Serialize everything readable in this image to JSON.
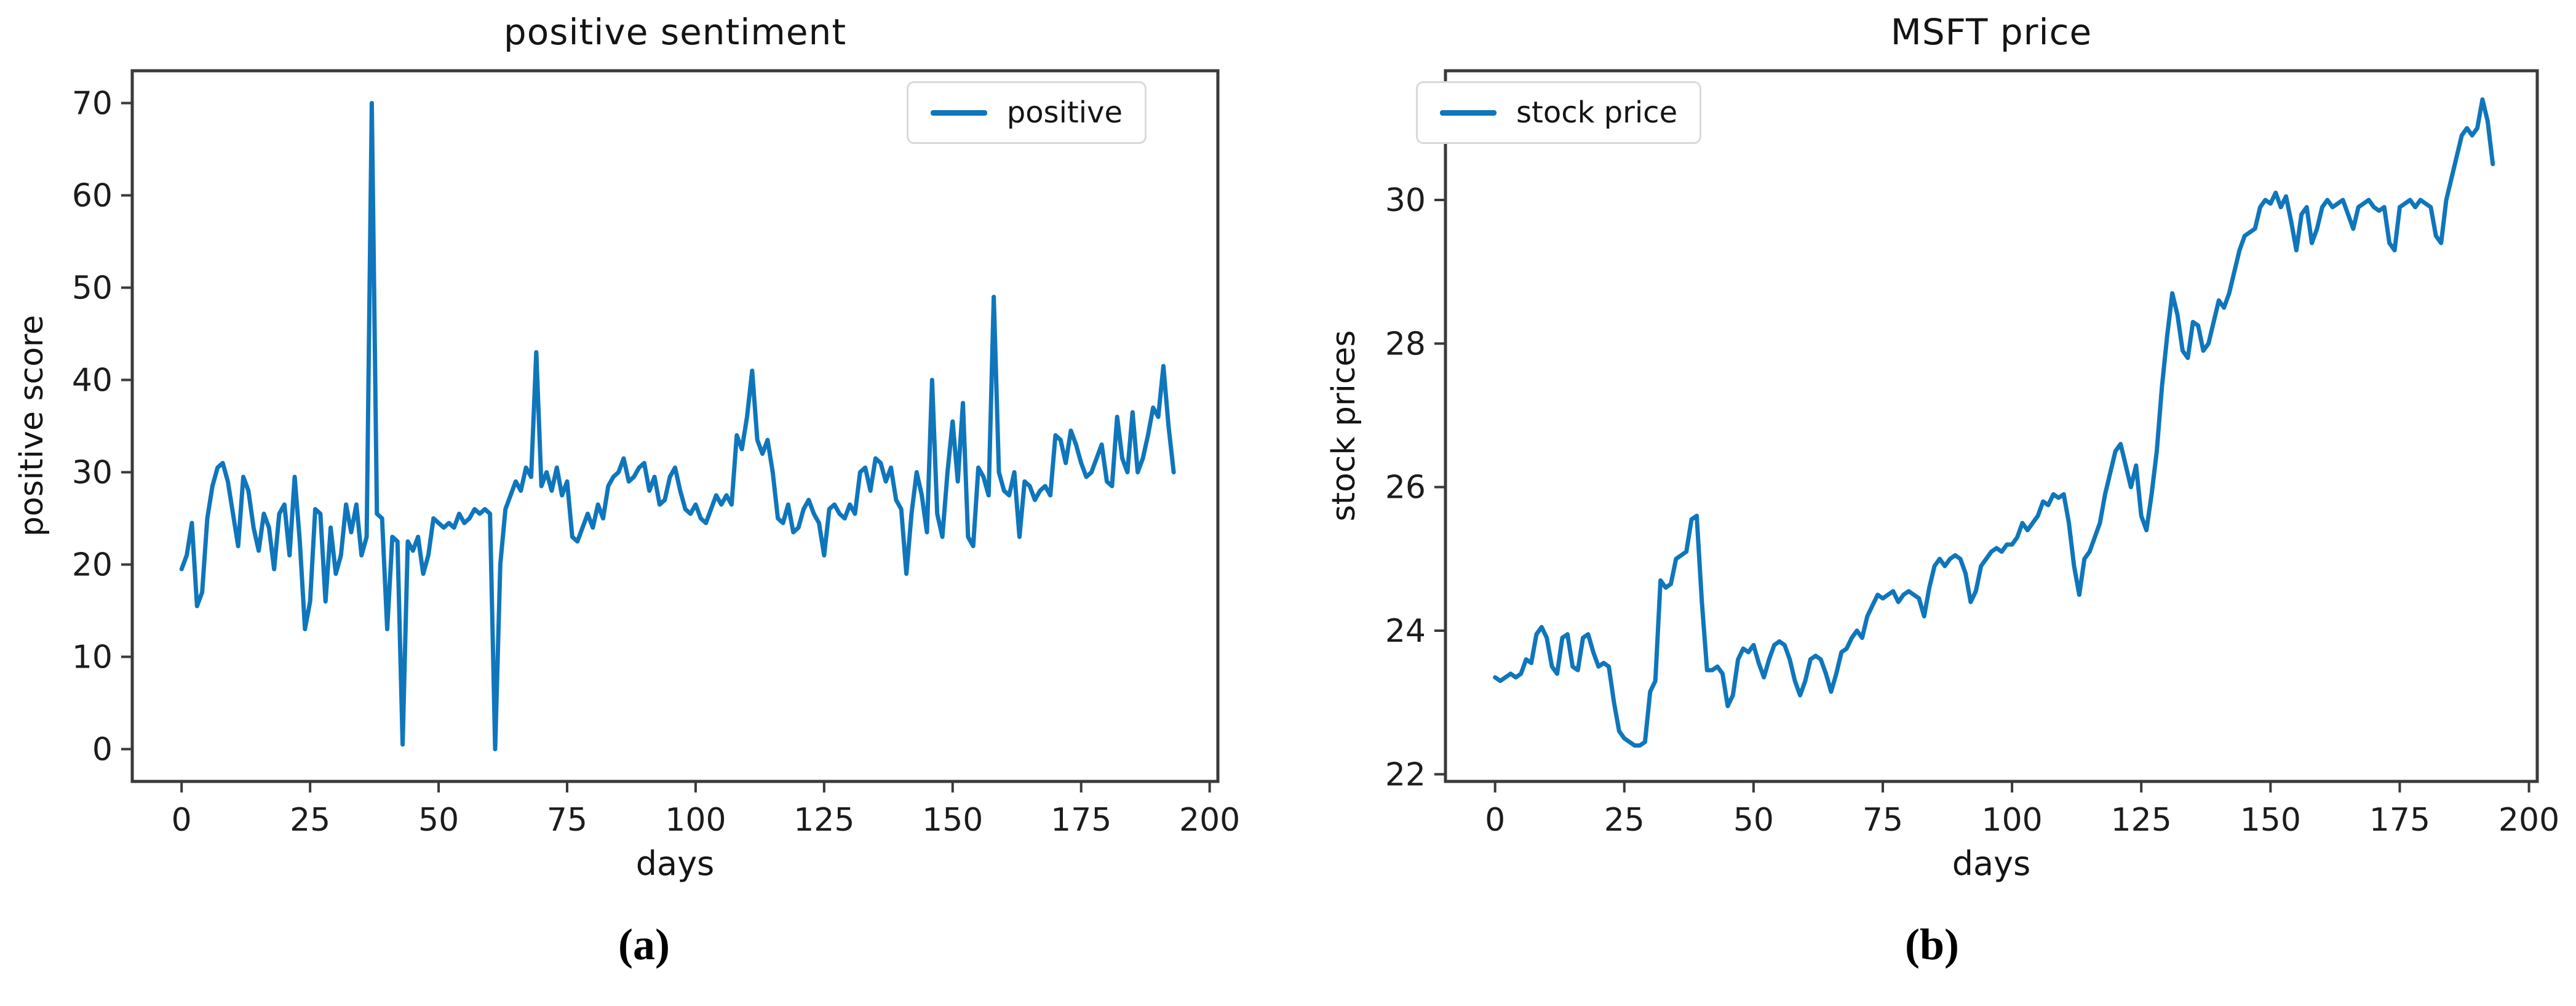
{
  "chart_data": [
    {
      "type": "line",
      "title": "positive sentiment",
      "xlabel": "days",
      "ylabel": "positive score",
      "legend": [
        "positive"
      ],
      "legend_position": "upper right",
      "caption": "(a)",
      "line_color": "#0f76bc",
      "grid": false,
      "x_start": 0,
      "x_step": 1,
      "xlim": [
        -9.6,
        201.6
      ],
      "ylim": [
        -3.5,
        73.5
      ],
      "xticks": [
        0,
        25,
        50,
        75,
        100,
        125,
        150,
        175,
        200
      ],
      "yticks": [
        0,
        10,
        20,
        30,
        40,
        50,
        60,
        70
      ],
      "values": [
        19.5,
        21,
        24.5,
        15.5,
        17,
        25,
        28.5,
        30.5,
        31,
        29,
        25.5,
        22,
        29.5,
        28,
        24,
        21.5,
        25.5,
        24,
        19.5,
        25.5,
        26.5,
        21,
        29.5,
        22.5,
        13,
        16,
        26,
        25.5,
        16,
        24,
        19,
        21,
        26.5,
        23.5,
        26.5,
        21,
        23,
        70,
        25.5,
        25,
        13,
        23,
        22.5,
        0.5,
        22.5,
        21.5,
        23,
        19,
        21,
        25,
        24.5,
        24,
        24.5,
        24,
        25.5,
        24.5,
        25,
        26,
        25.5,
        26,
        25.5,
        0,
        20,
        26,
        27.5,
        29,
        28,
        30.5,
        29.5,
        43,
        28.5,
        30,
        28,
        30.5,
        27.5,
        29,
        23,
        22.5,
        24,
        25.5,
        24,
        26.5,
        25,
        28.5,
        29.5,
        30,
        31.5,
        29,
        29.5,
        30.5,
        31,
        28,
        29.5,
        26.5,
        27,
        29.5,
        30.5,
        28,
        26,
        25.5,
        26.5,
        25,
        24.5,
        26,
        27.5,
        26.5,
        27.5,
        26.5,
        34,
        32.5,
        36,
        41,
        33.5,
        32,
        33.5,
        30,
        25,
        24.5,
        26.5,
        23.5,
        24,
        26,
        27,
        25.5,
        24.5,
        21,
        26,
        26.5,
        25.5,
        25,
        26.5,
        25.5,
        30,
        30.5,
        28,
        31.5,
        31,
        29,
        30.5,
        27,
        26,
        19,
        25.5,
        30,
        27.5,
        23.5,
        40,
        25.5,
        23,
        30,
        35.5,
        29,
        37.5,
        23,
        22,
        30.5,
        29.5,
        27.5,
        49,
        30,
        28,
        27.5,
        30,
        23,
        29,
        28.5,
        27,
        28,
        28.5,
        27.5,
        34,
        33.5,
        31,
        34.5,
        33,
        31,
        29.5,
        30,
        31.5,
        33,
        29,
        28.5,
        36,
        31.5,
        30,
        36.5,
        30,
        31.5,
        34,
        37,
        36,
        41.5,
        35,
        30
      ]
    },
    {
      "type": "line",
      "title": "MSFT price",
      "xlabel": "days",
      "ylabel": "stock prices",
      "legend": [
        "stock price"
      ],
      "legend_position": "upper left",
      "caption": "(b)",
      "line_color": "#0f76bc",
      "grid": false,
      "x_start": 0,
      "x_step": 1,
      "xlim": [
        -9.6,
        201.6
      ],
      "ylim": [
        21.9,
        31.8
      ],
      "xticks": [
        0,
        25,
        50,
        75,
        100,
        125,
        150,
        175,
        200
      ],
      "yticks": [
        22,
        24,
        26,
        28,
        30
      ],
      "values": [
        23.35,
        23.3,
        23.35,
        23.4,
        23.35,
        23.4,
        23.6,
        23.55,
        23.95,
        24.05,
        23.9,
        23.5,
        23.4,
        23.9,
        23.95,
        23.5,
        23.45,
        23.9,
        23.95,
        23.7,
        23.5,
        23.55,
        23.5,
        23.0,
        22.6,
        22.5,
        22.45,
        22.4,
        22.4,
        22.45,
        23.15,
        23.3,
        24.7,
        24.6,
        24.65,
        25.0,
        25.05,
        25.1,
        25.55,
        25.6,
        24.4,
        23.45,
        23.45,
        23.5,
        23.4,
        22.95,
        23.1,
        23.6,
        23.75,
        23.7,
        23.8,
        23.55,
        23.35,
        23.6,
        23.8,
        23.85,
        23.8,
        23.6,
        23.3,
        23.1,
        23.3,
        23.6,
        23.65,
        23.6,
        23.4,
        23.15,
        23.4,
        23.7,
        23.75,
        23.9,
        24.0,
        23.9,
        24.2,
        24.35,
        24.5,
        24.45,
        24.5,
        24.55,
        24.4,
        24.5,
        24.55,
        24.5,
        24.45,
        24.2,
        24.6,
        24.9,
        25.0,
        24.9,
        25.0,
        25.05,
        25.0,
        24.8,
        24.4,
        24.55,
        24.9,
        25.0,
        25.1,
        25.15,
        25.1,
        25.2,
        25.2,
        25.3,
        25.5,
        25.4,
        25.5,
        25.6,
        25.8,
        25.75,
        25.9,
        25.85,
        25.9,
        25.5,
        24.9,
        24.5,
        25.0,
        25.1,
        25.3,
        25.5,
        25.9,
        26.2,
        26.5,
        26.6,
        26.3,
        26.0,
        26.3,
        25.6,
        25.4,
        25.9,
        26.5,
        27.4,
        28.1,
        28.7,
        28.4,
        27.9,
        27.8,
        28.3,
        28.25,
        27.9,
        28.0,
        28.3,
        28.6,
        28.5,
        28.7,
        29.0,
        29.3,
        29.5,
        29.55,
        29.6,
        29.9,
        30.0,
        29.95,
        30.1,
        29.9,
        30.05,
        29.7,
        29.3,
        29.8,
        29.9,
        29.4,
        29.6,
        29.9,
        30.0,
        29.9,
        29.95,
        30.0,
        29.8,
        29.6,
        29.9,
        29.95,
        30.0,
        29.9,
        29.85,
        29.9,
        29.4,
        29.3,
        29.9,
        29.95,
        30.0,
        29.9,
        30.0,
        29.95,
        29.9,
        29.5,
        29.4,
        30.0,
        30.3,
        30.6,
        30.9,
        31.0,
        30.9,
        31.0,
        31.4,
        31.1,
        30.5
      ]
    }
  ]
}
